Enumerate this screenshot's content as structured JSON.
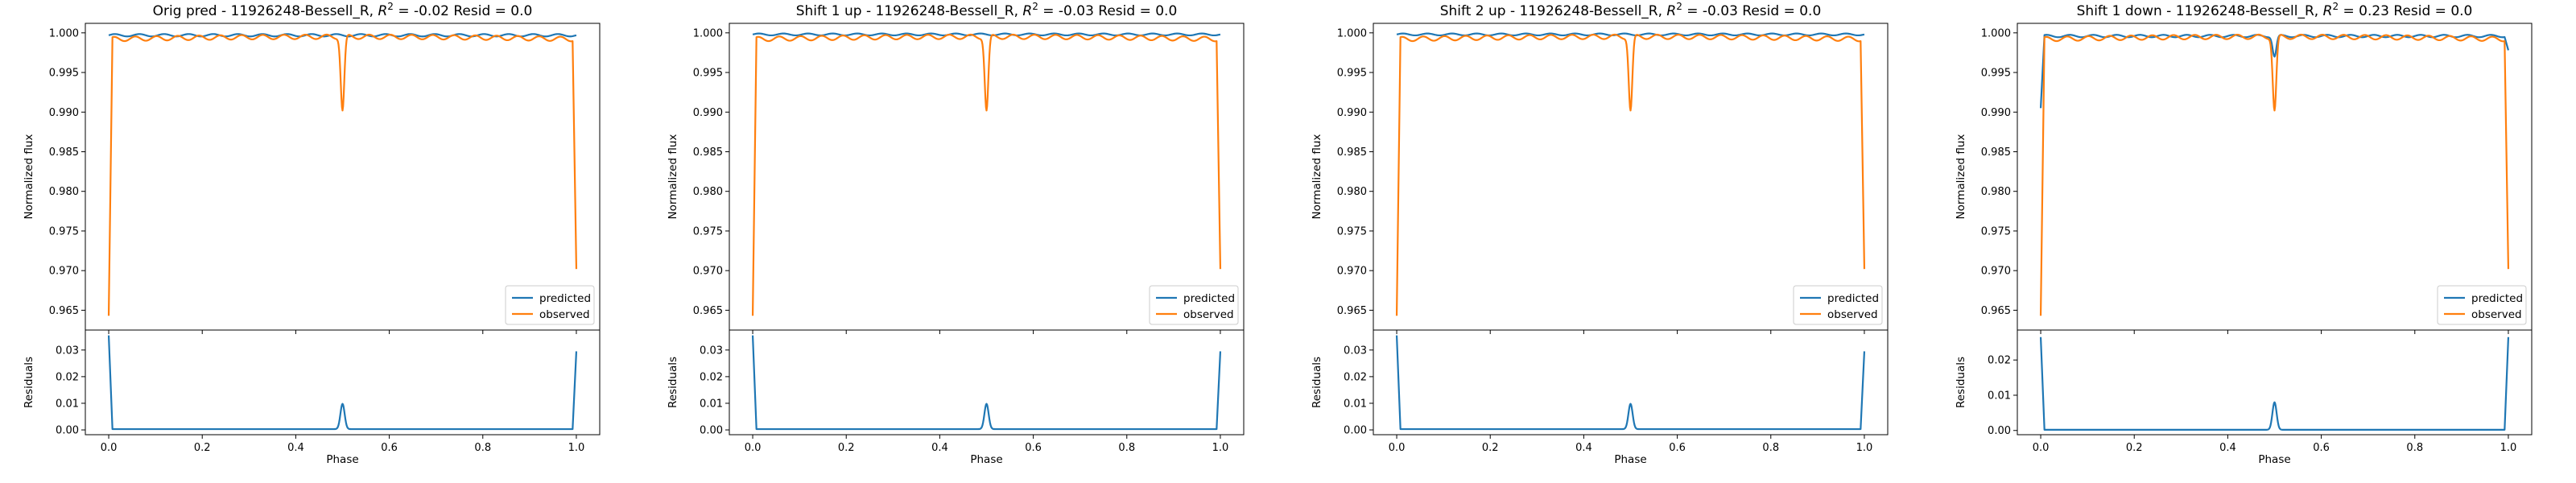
{
  "figure": {
    "background": "#ffffff"
  },
  "chart_data": [
    {
      "type": "line",
      "title": "Orig pred - 11926248-Bessell_R, $R^2 = $-0.02 Resid = 0.0",
      "title_parts": {
        "pre": "Orig pred - 11926248-Bessell_R, ",
        "r2_symbol": "R",
        "r2_sup": "2",
        "post": " = -0.02 Resid = 0.0"
      },
      "top": {
        "ylabel": "Normalized flux",
        "ylim": [
          0.9625,
          1.0012
        ],
        "yticks": [
          0.965,
          0.97,
          0.975,
          0.98,
          0.985,
          0.99,
          0.995,
          1.0
        ],
        "ytick_labels": [
          "0.965",
          "0.970",
          "0.975",
          "0.980",
          "0.985",
          "0.990",
          "0.995",
          "1.000"
        ],
        "legend": {
          "position": "lower-right",
          "entries": [
            "predicted",
            "observed"
          ]
        },
        "series": [
          {
            "name": "predicted",
            "color": "#1f77b4",
            "shape": "predicted_flat",
            "base": 0.9997,
            "ripple": 0.00015
          },
          {
            "name": "observed",
            "color": "#ff7f0e",
            "shape": "observed_eclipse",
            "start": 0.9643,
            "end": 0.9702,
            "dip_min": 0.9902,
            "base": 0.9995,
            "ripple": 0.00028
          }
        ]
      },
      "bottom": {
        "xlabel": "Phase",
        "ylabel": "Residuals",
        "xlim": [
          -0.05,
          1.05
        ],
        "xticks": [
          0.0,
          0.2,
          0.4,
          0.6,
          0.8,
          1.0
        ],
        "xtick_labels": [
          "0.0",
          "0.2",
          "0.4",
          "0.6",
          "0.8",
          "1.0"
        ],
        "ylim": [
          -0.0018,
          0.0375
        ],
        "yticks": [
          0.0,
          0.01,
          0.02,
          0.03
        ],
        "ytick_labels": [
          "0.00",
          "0.01",
          "0.02",
          "0.03"
        ],
        "series": [
          {
            "name": "residuals",
            "color": "#1f77b4",
            "start": 0.0355,
            "end": 0.0295,
            "peak_x": 0.5,
            "peak": 0.0098,
            "floor": 0.0003
          }
        ]
      }
    },
    {
      "type": "line",
      "title": "Shift 1 up - 11926248-Bessell_R, $R^2 = $-0.03 Resid = 0.0",
      "title_parts": {
        "pre": "Shift 1 up - 11926248-Bessell_R, ",
        "r2_symbol": "R",
        "r2_sup": "2",
        "post": " = -0.03 Resid = 0.0"
      },
      "top": {
        "ylabel": "Normalized flux",
        "ylim": [
          0.9625,
          1.0012
        ],
        "yticks": [
          0.965,
          0.97,
          0.975,
          0.98,
          0.985,
          0.99,
          0.995,
          1.0
        ],
        "ytick_labels": [
          "0.965",
          "0.970",
          "0.975",
          "0.980",
          "0.985",
          "0.990",
          "0.995",
          "1.000"
        ],
        "legend": {
          "position": "lower-right",
          "entries": [
            "predicted",
            "observed"
          ]
        },
        "series": [
          {
            "name": "predicted",
            "color": "#1f77b4",
            "shape": "predicted_flat",
            "base": 0.9998,
            "ripple": 0.00012
          },
          {
            "name": "observed",
            "color": "#ff7f0e",
            "shape": "observed_eclipse",
            "start": 0.9643,
            "end": 0.9702,
            "dip_min": 0.9902,
            "base": 0.9995,
            "ripple": 0.00028
          }
        ]
      },
      "bottom": {
        "xlabel": "Phase",
        "ylabel": "Residuals",
        "xlim": [
          -0.05,
          1.05
        ],
        "xticks": [
          0.0,
          0.2,
          0.4,
          0.6,
          0.8,
          1.0
        ],
        "xtick_labels": [
          "0.0",
          "0.2",
          "0.4",
          "0.6",
          "0.8",
          "1.0"
        ],
        "ylim": [
          -0.0018,
          0.0375
        ],
        "yticks": [
          0.0,
          0.01,
          0.02,
          0.03
        ],
        "ytick_labels": [
          "0.00",
          "0.01",
          "0.02",
          "0.03"
        ],
        "series": [
          {
            "name": "residuals",
            "color": "#1f77b4",
            "start": 0.0355,
            "end": 0.0295,
            "peak_x": 0.5,
            "peak": 0.0098,
            "floor": 0.0003
          }
        ]
      }
    },
    {
      "type": "line",
      "title": "Shift 2 up - 11926248-Bessell_R, $R^2 = $-0.03 Resid = 0.0",
      "title_parts": {
        "pre": "Shift 2 up - 11926248-Bessell_R, ",
        "r2_symbol": "R",
        "r2_sup": "2",
        "post": " = -0.03 Resid = 0.0"
      },
      "top": {
        "ylabel": "Normalized flux",
        "ylim": [
          0.9625,
          1.0012
        ],
        "yticks": [
          0.965,
          0.97,
          0.975,
          0.98,
          0.985,
          0.99,
          0.995,
          1.0
        ],
        "ytick_labels": [
          "0.965",
          "0.970",
          "0.975",
          "0.980",
          "0.985",
          "0.990",
          "0.995",
          "1.000"
        ],
        "legend": {
          "position": "lower-right",
          "entries": [
            "predicted",
            "observed"
          ]
        },
        "series": [
          {
            "name": "predicted",
            "color": "#1f77b4",
            "shape": "predicted_flat",
            "base": 0.9998,
            "ripple": 0.00012
          },
          {
            "name": "observed",
            "color": "#ff7f0e",
            "shape": "observed_eclipse",
            "start": 0.9643,
            "end": 0.9702,
            "dip_min": 0.9902,
            "base": 0.9995,
            "ripple": 0.00028
          }
        ]
      },
      "bottom": {
        "xlabel": "Phase",
        "ylabel": "Residuals",
        "xlim": [
          -0.05,
          1.05
        ],
        "xticks": [
          0.0,
          0.2,
          0.4,
          0.6,
          0.8,
          1.0
        ],
        "xtick_labels": [
          "0.0",
          "0.2",
          "0.4",
          "0.6",
          "0.8",
          "1.0"
        ],
        "ylim": [
          -0.0018,
          0.0375
        ],
        "yticks": [
          0.0,
          0.01,
          0.02,
          0.03
        ],
        "ytick_labels": [
          "0.00",
          "0.01",
          "0.02",
          "0.03"
        ],
        "series": [
          {
            "name": "residuals",
            "color": "#1f77b4",
            "start": 0.0355,
            "end": 0.0295,
            "peak_x": 0.5,
            "peak": 0.0098,
            "floor": 0.0003
          }
        ]
      }
    },
    {
      "type": "line",
      "title": "Shift 1 down - 11926248-Bessell_R, $R^2 = $0.23 Resid = 0.0",
      "title_parts": {
        "pre": "Shift 1 down - 11926248-Bessell_R, ",
        "r2_symbol": "R",
        "r2_sup": "2",
        "post": " = 0.23 Resid = 0.0"
      },
      "top": {
        "ylabel": "Normalized flux",
        "ylim": [
          0.9625,
          1.0012
        ],
        "yticks": [
          0.965,
          0.97,
          0.975,
          0.98,
          0.985,
          0.99,
          0.995,
          1.0
        ],
        "ytick_labels": [
          "0.965",
          "0.970",
          "0.975",
          "0.980",
          "0.985",
          "0.990",
          "0.995",
          "1.000"
        ],
        "legend": {
          "position": "lower-right",
          "entries": [
            "predicted",
            "observed"
          ]
        },
        "series": [
          {
            "name": "predicted",
            "color": "#1f77b4",
            "shape": "predicted_shift_down",
            "start": 0.9905,
            "end": 0.9978,
            "dip_min": 0.997,
            "base": 0.9996,
            "ripple": 0.00015
          },
          {
            "name": "observed",
            "color": "#ff7f0e",
            "shape": "observed_eclipse",
            "start": 0.9643,
            "end": 0.9702,
            "dip_min": 0.9902,
            "base": 0.9995,
            "ripple": 0.00028
          }
        ]
      },
      "bottom": {
        "xlabel": "Phase",
        "ylabel": "Residuals",
        "xlim": [
          -0.05,
          1.05
        ],
        "xticks": [
          0.0,
          0.2,
          0.4,
          0.6,
          0.8,
          1.0
        ],
        "xtick_labels": [
          "0.0",
          "0.2",
          "0.4",
          "0.6",
          "0.8",
          "1.0"
        ],
        "ylim": [
          -0.0012,
          0.0285
        ],
        "yticks": [
          0.0,
          0.01,
          0.02
        ],
        "ytick_labels": [
          "0.00",
          "0.01",
          "0.02"
        ],
        "series": [
          {
            "name": "residuals",
            "color": "#1f77b4",
            "start": 0.0265,
            "end": 0.0265,
            "peak_x": 0.5,
            "peak": 0.008,
            "floor": 0.0002
          }
        ]
      }
    }
  ]
}
